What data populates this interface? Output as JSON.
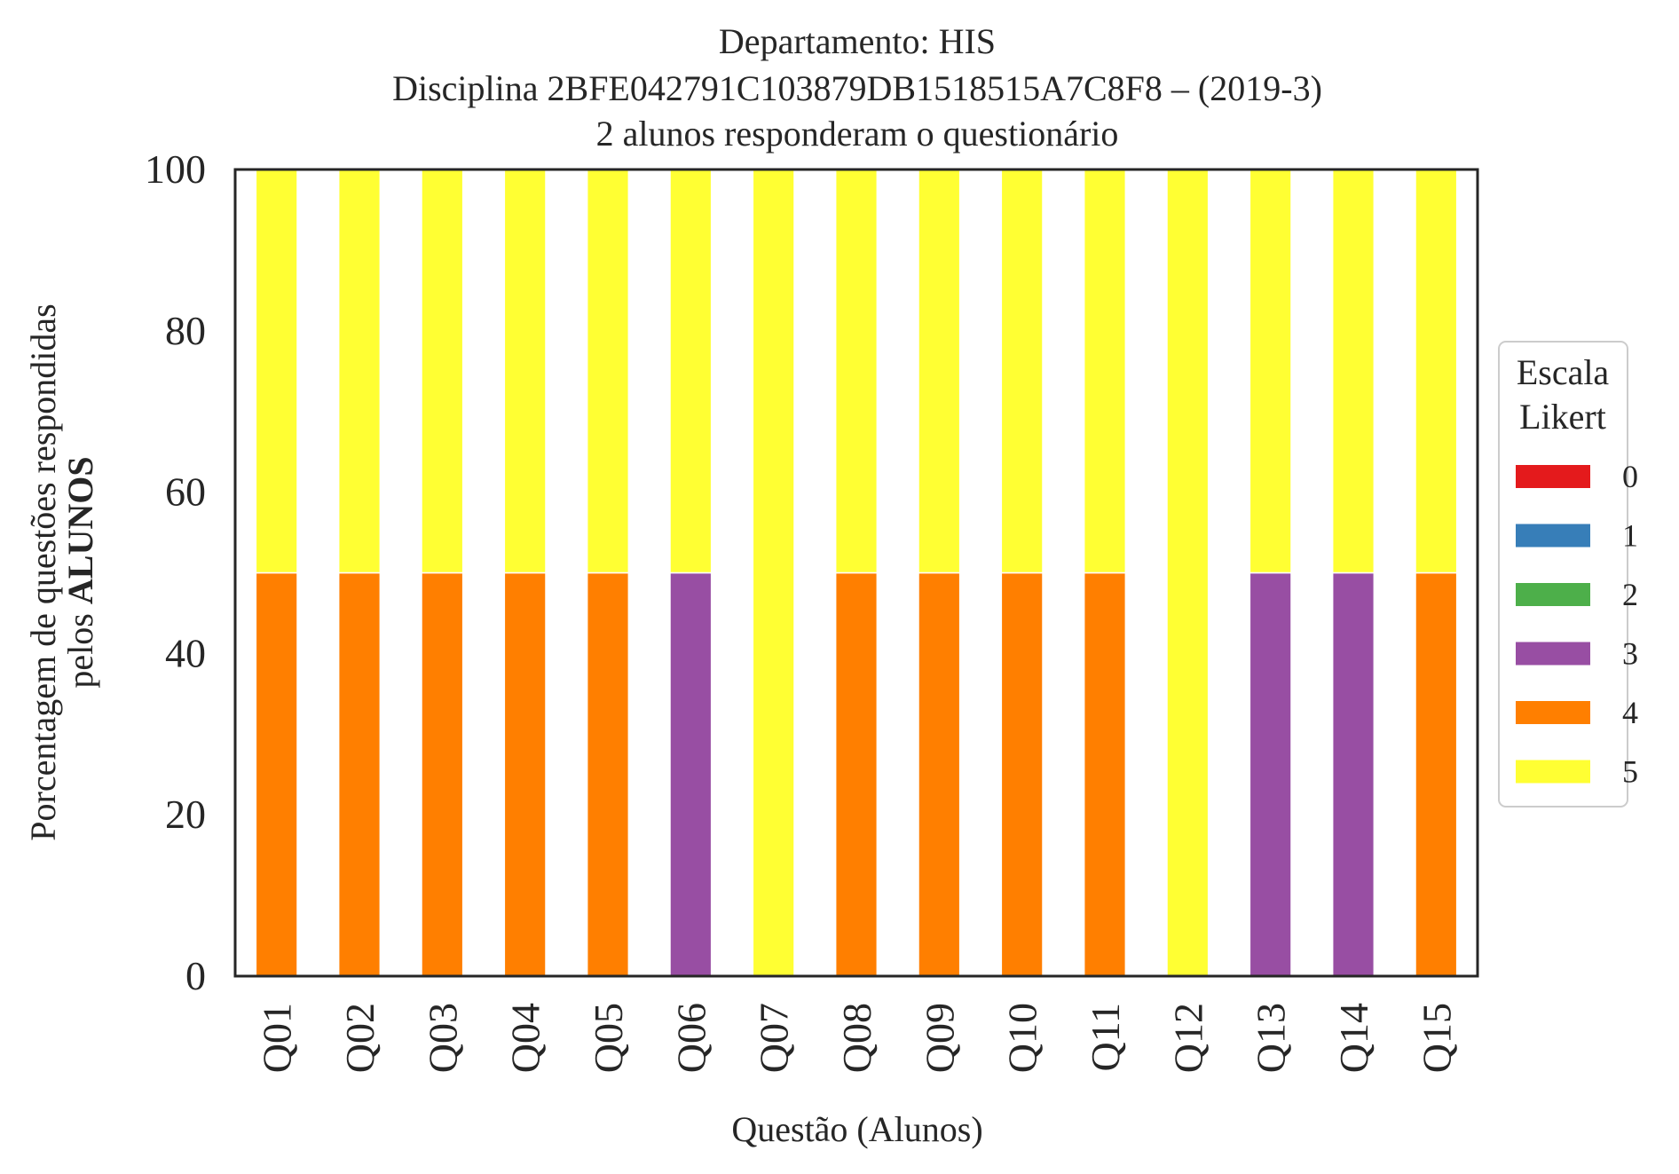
{
  "chart_data": {
    "type": "bar",
    "stacked": true,
    "title_lines": [
      "Departamento: HIS",
      "Disciplina 2BFE042791C103879DB1518515A7C8F8 – (2019-3)",
      "2 alunos responderam o questionário"
    ],
    "xlabel": "Questão (Alunos)",
    "ylabel_line1": "Porcentagem de questões respondidas",
    "ylabel_line2_prefix": "pelos ",
    "ylabel_line2_bold": "ALUNOS",
    "ylim": [
      0,
      100
    ],
    "yticks": [
      "0",
      "20",
      "40",
      "60",
      "80",
      "100"
    ],
    "grid": false,
    "legend_position": "right",
    "legend_title_lines": [
      "Escala",
      "Likert"
    ],
    "categories": [
      "Q01",
      "Q02",
      "Q03",
      "Q04",
      "Q05",
      "Q06",
      "Q07",
      "Q08",
      "Q09",
      "Q10",
      "Q11",
      "Q12",
      "Q13",
      "Q14",
      "Q15"
    ],
    "series": [
      {
        "name": "0",
        "color": "#e41a1c",
        "values": [
          0,
          0,
          0,
          0,
          0,
          0,
          0,
          0,
          0,
          0,
          0,
          0,
          0,
          0,
          0
        ]
      },
      {
        "name": "1",
        "color": "#377eb8",
        "values": [
          0,
          0,
          0,
          0,
          0,
          0,
          0,
          0,
          0,
          0,
          0,
          0,
          0,
          0,
          0
        ]
      },
      {
        "name": "2",
        "color": "#4daf4a",
        "values": [
          0,
          0,
          0,
          0,
          0,
          0,
          0,
          0,
          0,
          0,
          0,
          0,
          0,
          0,
          0
        ]
      },
      {
        "name": "3",
        "color": "#984ea3",
        "values": [
          0,
          0,
          0,
          0,
          0,
          50,
          0,
          0,
          0,
          0,
          0,
          0,
          50,
          50,
          0
        ]
      },
      {
        "name": "4",
        "color": "#ff7f00",
        "values": [
          50,
          50,
          50,
          50,
          50,
          0,
          0,
          50,
          50,
          50,
          50,
          0,
          0,
          0,
          50
        ]
      },
      {
        "name": "5",
        "color": "#ffff33",
        "values": [
          50,
          50,
          50,
          50,
          50,
          50,
          100,
          50,
          50,
          50,
          50,
          100,
          50,
          50,
          50
        ]
      }
    ]
  }
}
